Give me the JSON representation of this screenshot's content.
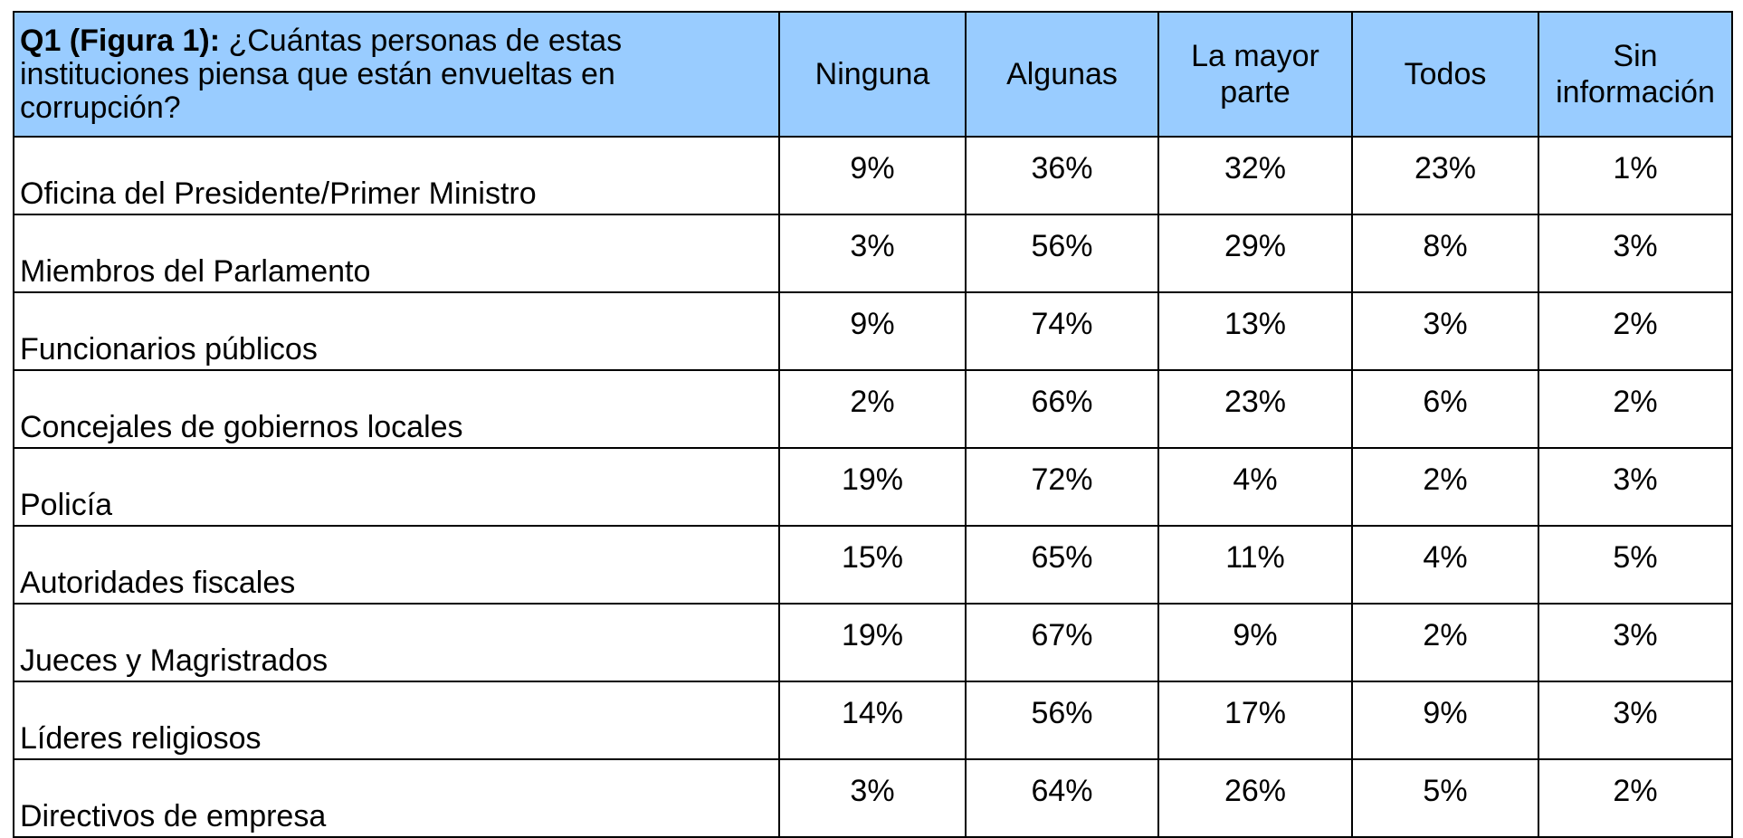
{
  "table": {
    "question_code": "Q1 (Figura 1):",
    "question_text": " ¿Cuántas personas de estas instituciones piensa que están envueltas en corrupción?",
    "columns": [
      "Ninguna",
      "Algunas",
      "La mayor parte",
      "Todos",
      "Sin información"
    ],
    "rows": [
      {
        "label": "Oficina del Presidente/Primer Ministro",
        "values": [
          "9%",
          "36%",
          "32%",
          "23%",
          "1%"
        ]
      },
      {
        "label": "Miembros del Parlamento",
        "values": [
          "3%",
          "56%",
          "29%",
          "8%",
          "3%"
        ]
      },
      {
        "label": "Funcionarios públicos",
        "values": [
          "9%",
          "74%",
          "13%",
          "3%",
          "2%"
        ]
      },
      {
        "label": "Concejales de gobiernos locales",
        "values": [
          "2%",
          "66%",
          "23%",
          "6%",
          "2%"
        ]
      },
      {
        "label": "Policía",
        "values": [
          "19%",
          "72%",
          "4%",
          "2%",
          "3%"
        ]
      },
      {
        "label": "Autoridades fiscales",
        "values": [
          "15%",
          "65%",
          "11%",
          "4%",
          "5%"
        ]
      },
      {
        "label": "Jueces y Magristrados",
        "values": [
          "19%",
          "67%",
          "9%",
          "2%",
          "3%"
        ]
      },
      {
        "label": "Líderes religiosos",
        "values": [
          "14%",
          "56%",
          "17%",
          "9%",
          "3%"
        ]
      },
      {
        "label": "Directivos de empresa",
        "values": [
          "3%",
          "64%",
          "26%",
          "5%",
          "2%"
        ]
      }
    ],
    "header_color": "#99ccff"
  }
}
